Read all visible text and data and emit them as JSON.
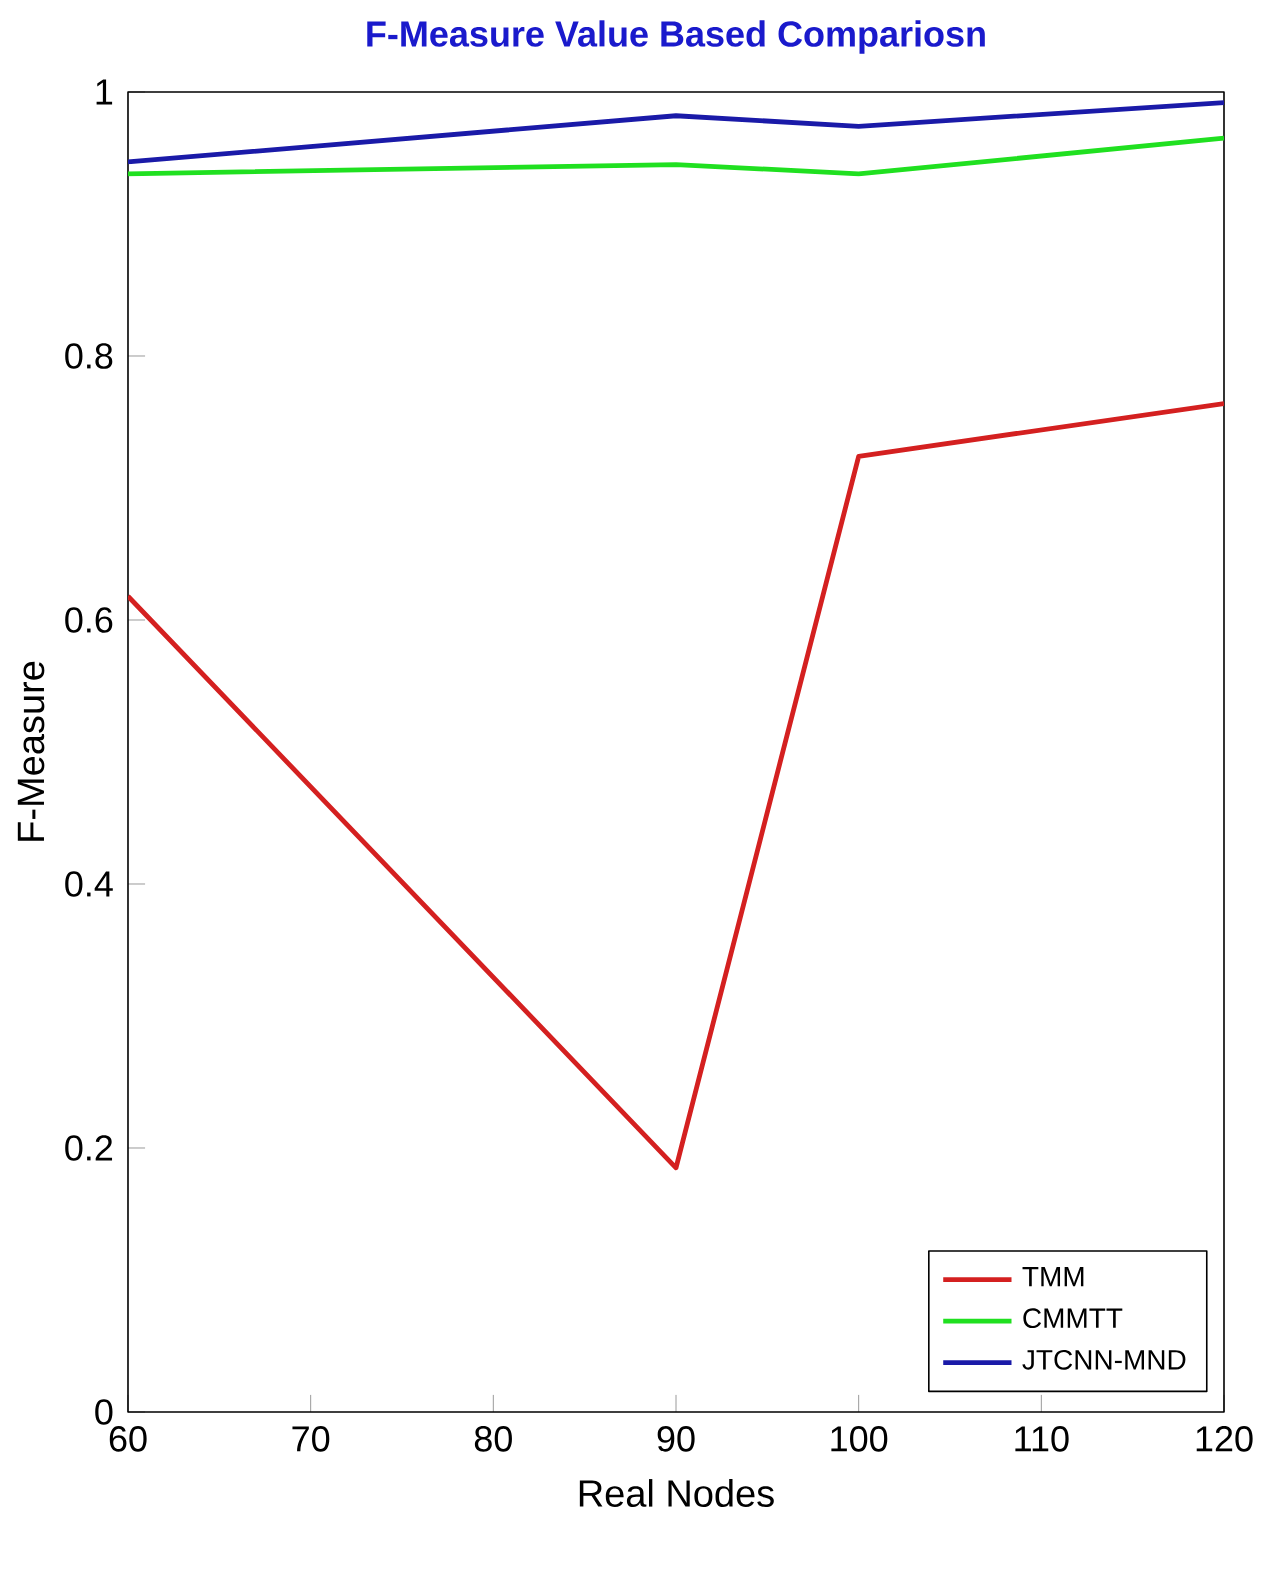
{
  "chart_data": {
    "type": "line",
    "title": "F-Measure Value Based Compariosn",
    "xlabel": "Real Nodes",
    "ylabel": "F-Measure",
    "x": [
      60,
      90,
      100,
      120
    ],
    "series": [
      {
        "name": "TMM",
        "color": "#d42020",
        "values": [
          0.618,
          0.185,
          0.724,
          0.764
        ]
      },
      {
        "name": "CMMTT",
        "color": "#20e020",
        "values": [
          0.938,
          0.945,
          0.938,
          0.965
        ]
      },
      {
        "name": "JTCNN-MND",
        "color": "#1a1aa8",
        "values": [
          0.947,
          0.982,
          0.974,
          0.992
        ]
      }
    ],
    "xlim": [
      60,
      120
    ],
    "xticks": [
      60,
      70,
      80,
      90,
      100,
      110,
      120
    ],
    "ylim": [
      0,
      1
    ],
    "yticks": [
      0,
      0.2,
      0.4,
      0.6,
      0.8,
      1
    ],
    "grid": false,
    "legend": "bottom right",
    "marker": "none",
    "line_style": "solid"
  }
}
